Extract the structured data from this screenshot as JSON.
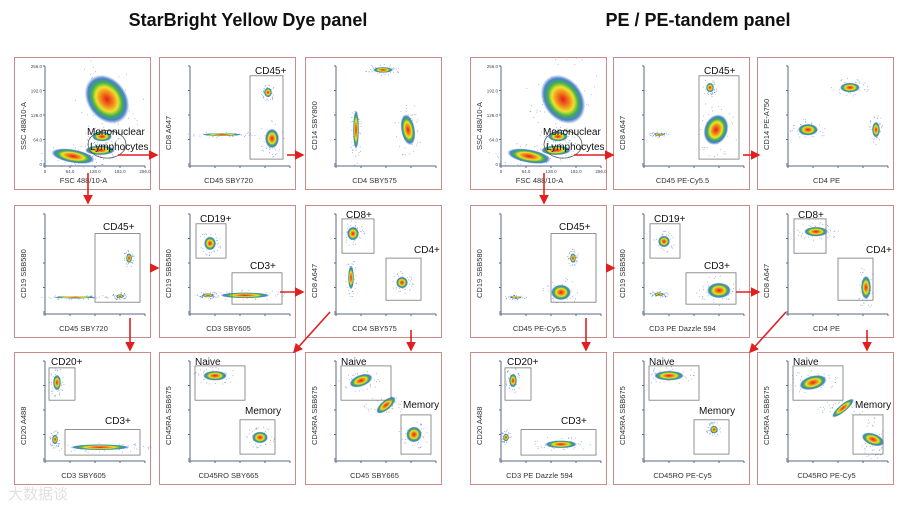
{
  "titles": {
    "left": "StarBright Yellow Dye panel",
    "right": "PE / PE-tandem panel"
  },
  "watermark": "大数据谈",
  "scatter_ticks": [
    "0",
    "64.0",
    "128.0",
    "192.0",
    "256.0"
  ],
  "colors": {
    "gate": "#777777",
    "arrow": "#e02020",
    "border": "#c98a8a"
  },
  "left_panels": [
    {
      "xlabel": "FSC 488/10-A",
      "ylabel": "SSC 488/10-A",
      "gates": [
        "Mononuclear",
        "Lymphocytes"
      ]
    },
    {
      "xlabel": "CD45 SBY720",
      "ylabel": "CD8 A647",
      "gates": [
        "CD45+"
      ]
    },
    {
      "xlabel": "CD4 SBY575",
      "ylabel": "CD14 SBY800",
      "gates": []
    },
    {
      "xlabel": "CD45 SBY720",
      "ylabel": "CD19 SBB580",
      "gates": [
        "CD45+"
      ]
    },
    {
      "xlabel": "CD3 SBY605",
      "ylabel": "CD19 SBB580",
      "gates": [
        "CD19+",
        "CD3+"
      ]
    },
    {
      "xlabel": "CD4 SBY575",
      "ylabel": "CD8 A647",
      "gates": [
        "CD8+",
        "CD4+"
      ]
    },
    {
      "xlabel": "CD3 SBY605",
      "ylabel": "CD20 A488",
      "gates": [
        "CD20+",
        "CD3+"
      ]
    },
    {
      "xlabel": "CD45RO SBY665",
      "ylabel": "CD45RA SBB675",
      "gates": [
        "Naive",
        "Memory"
      ]
    },
    {
      "xlabel": "CD45 SBY665",
      "ylabel": "CD45RA SBB675",
      "gates": [
        "Naive",
        "Memory"
      ]
    }
  ],
  "right_panels": [
    {
      "xlabel": "FSC 488/10-A",
      "ylabel": "SSC 488/10-A",
      "gates": [
        "Mononuclear",
        "Lymphocytes"
      ]
    },
    {
      "xlabel": "CD45 PE-Cy5.5",
      "ylabel": "CD8 A647",
      "gates": [
        "CD45+"
      ]
    },
    {
      "xlabel": "CD4 PE",
      "ylabel": "CD14 PE-A750",
      "gates": []
    },
    {
      "xlabel": "CD45 PE-Cy5.5",
      "ylabel": "CD19 SBB580",
      "gates": [
        "CD45+"
      ]
    },
    {
      "xlabel": "CD3 PE Dazzle 594",
      "ylabel": "CD19 SBB580",
      "gates": [
        "CD19+",
        "CD3+"
      ]
    },
    {
      "xlabel": "CD4 PE",
      "ylabel": "CD8 A647",
      "gates": [
        "CD8+",
        "CD4+"
      ]
    },
    {
      "xlabel": "CD3 PE Dazzle 594",
      "ylabel": "CD20 A488",
      "gates": [
        "CD20+",
        "CD3+"
      ]
    },
    {
      "xlabel": "CD45RO PE-Cy5",
      "ylabel": "CD45RA SBB675",
      "gates": [
        "Naive",
        "Memory"
      ]
    },
    {
      "xlabel": "CD45RO PE-Cy5",
      "ylabel": "CD45RA SBB675",
      "gates": [
        "Naive",
        "Memory"
      ]
    }
  ]
}
